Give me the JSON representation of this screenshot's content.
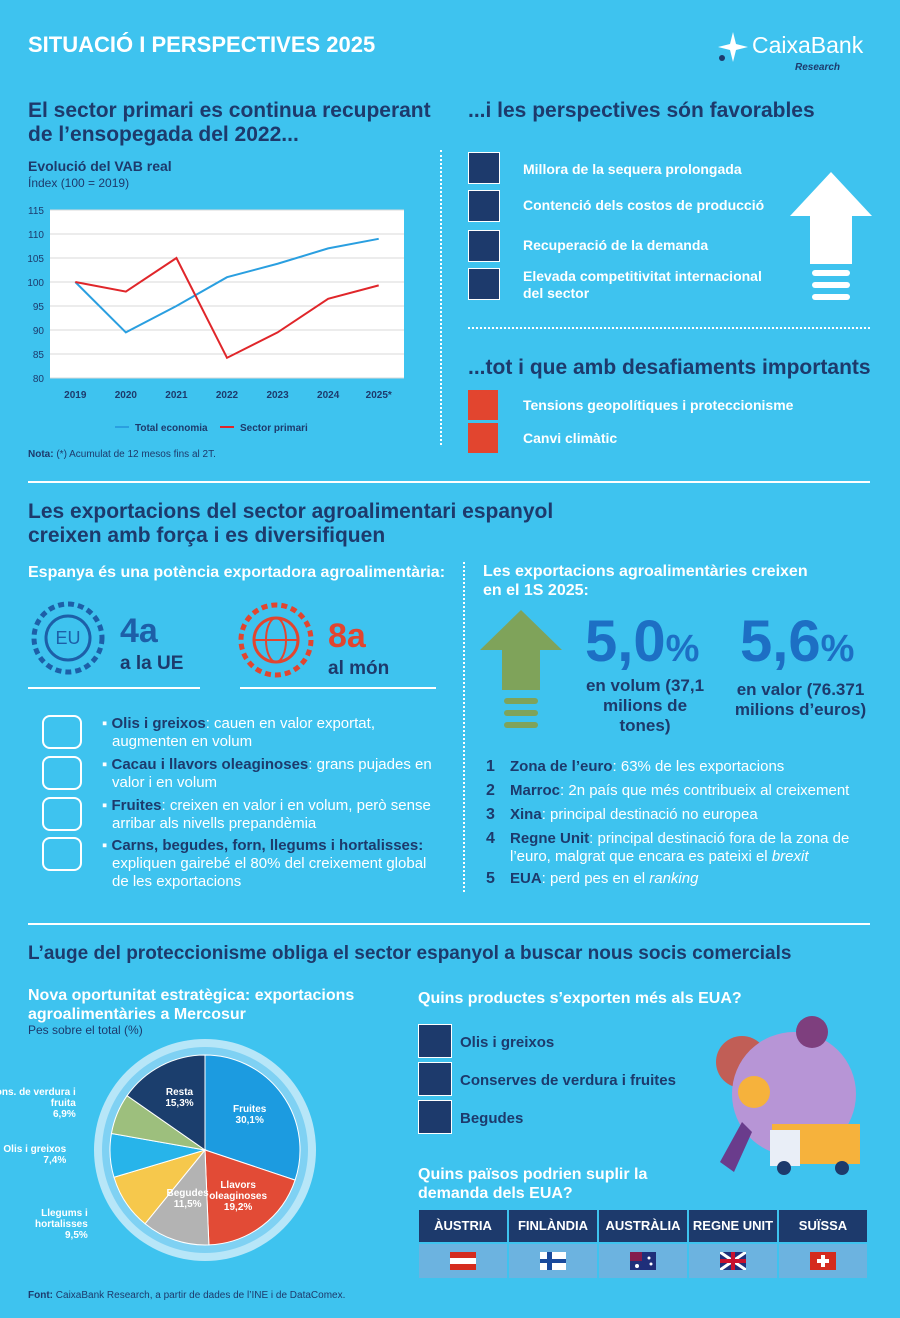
{
  "header": {
    "title": "SITUACIÓ I PERSPECTIVES 2025",
    "brand": "CaixaBank",
    "brand_sub": "Research"
  },
  "section1": {
    "left_title": "El sector primari es continua recuperant de l’ensopegada del 2022...",
    "right_title": "...i les perspectives són favorables",
    "favorables": [
      "Millora de la sequera prolongada",
      "Contenció dels costos de producció",
      "Recuperació de la demanda",
      "Elevada competitivitat internacional del sector"
    ],
    "challenges_title": "...tot i que amb desafiaments importants",
    "challenges": [
      "Tensions geopolítiques i proteccionisme",
      "Canvi climàtic"
    ],
    "note_label": "Nota:",
    "note": "(*) Acumulat de 12 mesos fins al 2T."
  },
  "chart_data": [
    {
      "type": "line",
      "title": "Evolució del VAB real",
      "subtitle": "Índex (100 = 2019)",
      "categories": [
        "2019",
        "2020",
        "2021",
        "2022",
        "2023",
        "2024",
        "2025*"
      ],
      "series": [
        {
          "name": "Total economia",
          "color": "#2a9fe0",
          "values": [
            100,
            89.5,
            95,
            101,
            103.8,
            107,
            109
          ]
        },
        {
          "name": "Sector primari",
          "color": "#e0262a",
          "values": [
            100,
            98,
            105,
            84.2,
            89.5,
            96.5,
            99.3
          ]
        }
      ],
      "ylim": [
        80,
        115
      ],
      "yticks": [
        80,
        85,
        90,
        95,
        100,
        105,
        110,
        115
      ],
      "grid": true,
      "legend": "bottom"
    },
    {
      "type": "pie",
      "title": "Nova oportunitat estratègica: exportacions agroalimentàries a Mercosur",
      "subtitle": "Pes sobre el total (%)",
      "categories": [
        "Fruites",
        "Llavors oleaginoses",
        "Begudes",
        "Llegums i hortalisses",
        "Olis i greixos",
        "Cons. de verdura i fruita",
        "Resta"
      ],
      "values": [
        30.1,
        19.2,
        11.5,
        9.5,
        7.4,
        6.9,
        15.3
      ],
      "value_labels": [
        "30,1%",
        "19,2%",
        "11,5%",
        "9,5%",
        "7,4%",
        "6,9%",
        "15,3%"
      ],
      "colors": [
        "#1c9be0",
        "#e24b36",
        "#b3b3b3",
        "#f6c84c",
        "#27b4ea",
        "#9dbf7d",
        "#1b3e6d"
      ]
    }
  ],
  "section2": {
    "title": "Les exportacions del sector agroalimentari espanyol creixen amb força i es diversifiquen",
    "left_title": "Espanya és una potència exportadora agroalimentària:",
    "rank_eu": {
      "badge": "EU",
      "value": "4a",
      "label": "a la UE"
    },
    "rank_world": {
      "value": "8a",
      "label": "al món"
    },
    "products": [
      {
        "bold": "Olis i greixos",
        "text": ": cauen en valor exportat, augmenten en volum"
      },
      {
        "bold": "Cacau i llavors oleaginoses",
        "text": ": grans pujades en valor i en volum"
      },
      {
        "bold": "Fruites",
        "text": ": creixen en valor i en volum, però sense arribar als nivells prepandèmia"
      },
      {
        "bold": "Carns, begudes, forn, llegums i hortalisses:",
        "text": " expliquen gairebé el 80% del creixement global de les exportacions"
      }
    ],
    "right_title": "Les exportacions agroalimentàries creixen en el 1S 2025:",
    "growth": [
      {
        "value": "5,0",
        "unit": "%",
        "label": "en volum (37,1 milions de tones)"
      },
      {
        "value": "5,6",
        "unit": "%",
        "label": "en valor (76.371 milions d’euros)"
      }
    ],
    "destinations": [
      {
        "rank": "1",
        "bold": "Zona de l’euro",
        "text": ": 63% de les exportacions"
      },
      {
        "rank": "2",
        "bold": "Marroc",
        "text": ": 2n país que més contribueix al creixement"
      },
      {
        "rank": "3",
        "bold": "Xina",
        "text": ": principal destinació no europea"
      },
      {
        "rank": "4",
        "bold": "Regne Unit",
        "text": ": principal destinació fora de la zona de l’euro, malgrat que encara es pateixi el ",
        "italic": "brexit"
      },
      {
        "rank": "5",
        "bold": "EUA",
        "text": ": perd pes en el ",
        "italic": "ranking"
      }
    ]
  },
  "section3": {
    "title": "L’auge del proteccionisme obliga el sector espanyol a buscar nous socis comercials",
    "products_title": "Quins productes s’exporten més als EUA?",
    "products": [
      "Olis i greixos",
      "Conserves de verdura i fruites",
      "Begudes"
    ],
    "countries_title": "Quins països podrien suplir la demanda dels EUA?",
    "countries": [
      "ÀUSTRIA",
      "FINLÀNDIA",
      "AUSTRÀLIA",
      "REGNE UNIT",
      "SUÏSSA"
    ]
  },
  "footer": {
    "source_label": "Font:",
    "source": "CaixaBank Research, a partir de dades de l’INE i de DataComex."
  }
}
